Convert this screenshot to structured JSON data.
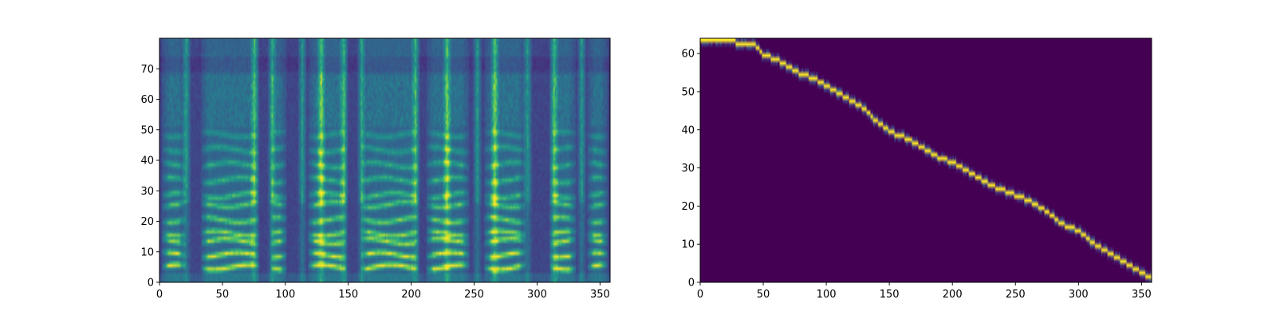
{
  "chart_data": [
    {
      "type": "heatmap",
      "title": "",
      "xlabel": "",
      "ylabel": "",
      "xlim": [
        0,
        358
      ],
      "ylim": [
        0,
        80
      ],
      "xticks": [
        "0",
        "50",
        "100",
        "150",
        "200",
        "250",
        "300",
        "350"
      ],
      "yticks": [
        "0",
        "10",
        "20",
        "30",
        "40",
        "50",
        "60",
        "70"
      ],
      "colormap": "viridis",
      "grid": false,
      "content": "mel spectrogram",
      "value_range": [
        0,
        1
      ],
      "bands": {
        "harmonic_rows": [
          4.5,
          8.5,
          13,
          15.5,
          20,
          25,
          28,
          33,
          38,
          43,
          48
        ],
        "voiced_segments": [
          [
            2,
            20
          ],
          [
            33,
            78
          ],
          [
            88,
            100
          ],
          [
            118,
            148
          ],
          [
            160,
            205
          ],
          [
            212,
            245
          ],
          [
            258,
            290
          ],
          [
            310,
            330
          ],
          [
            340,
            355
          ]
        ],
        "bright_columns": [
          21,
          75,
          89,
          113,
          128,
          146,
          160,
          203,
          228,
          252,
          266,
          292,
          313,
          335
        ]
      }
    },
    {
      "type": "heatmap",
      "title": "",
      "xlabel": "",
      "ylabel": "",
      "xlim": [
        0,
        358
      ],
      "ylim": [
        0,
        64
      ],
      "xticks": [
        "0",
        "50",
        "100",
        "150",
        "200",
        "250",
        "300",
        "350"
      ],
      "yticks": [
        "0",
        "10",
        "20",
        "30",
        "40",
        "50",
        "60"
      ],
      "colormap": "viridis",
      "grid": false,
      "content": "attention alignment",
      "value_range": [
        0,
        1
      ],
      "alignment_path": [
        [
          0,
          63
        ],
        [
          25,
          63
        ],
        [
          30,
          62
        ],
        [
          42,
          62
        ],
        [
          50,
          59
        ],
        [
          60,
          58
        ],
        [
          70,
          56
        ],
        [
          80,
          54
        ],
        [
          90,
          53
        ],
        [
          100,
          51
        ],
        [
          110,
          49
        ],
        [
          120,
          47
        ],
        [
          130,
          45
        ],
        [
          138,
          42
        ],
        [
          150,
          39
        ],
        [
          165,
          37
        ],
        [
          175,
          35
        ],
        [
          190,
          32
        ],
        [
          200,
          31
        ],
        [
          215,
          28
        ],
        [
          230,
          25
        ],
        [
          245,
          23
        ],
        [
          260,
          21
        ],
        [
          275,
          18
        ],
        [
          285,
          15
        ],
        [
          300,
          13
        ],
        [
          310,
          10
        ],
        [
          320,
          8
        ],
        [
          335,
          5
        ],
        [
          345,
          3
        ],
        [
          355,
          1
        ]
      ]
    }
  ]
}
